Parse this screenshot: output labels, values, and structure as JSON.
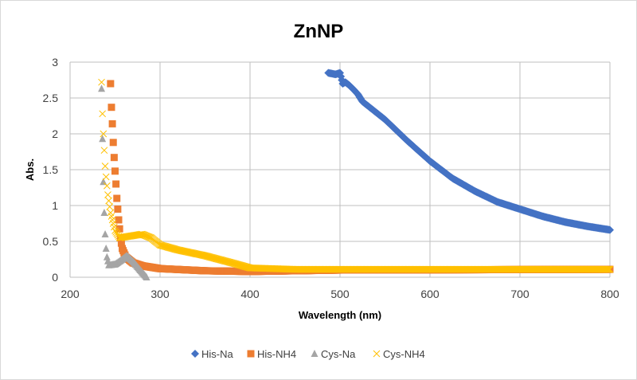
{
  "chart_data": {
    "type": "scatter",
    "title": "ZnNP",
    "xlabel": "Wavelength (nm)",
    "ylabel": "Abs.",
    "xlim": [
      200,
      800
    ],
    "ylim": [
      0,
      3
    ],
    "xticks": [
      "200",
      "300",
      "400",
      "500",
      "600",
      "700",
      "800"
    ],
    "yticks": [
      "0",
      "0.5",
      "1",
      "1.5",
      "2",
      "2.5",
      "3"
    ],
    "grid": true,
    "legend": "bottom",
    "series": [
      {
        "name": "His-Na",
        "marker": "diamond",
        "color": "#4472C4",
        "x": [
          487,
          495,
          500,
          503,
          506,
          510,
          515,
          520,
          525,
          535,
          550,
          575,
          600,
          625,
          650,
          675,
          700,
          725,
          750,
          775,
          800
        ],
        "y": [
          2.85,
          2.83,
          2.85,
          2.7,
          2.72,
          2.68,
          2.62,
          2.55,
          2.45,
          2.35,
          2.2,
          1.9,
          1.62,
          1.38,
          1.2,
          1.05,
          0.95,
          0.85,
          0.77,
          0.71,
          0.66
        ]
      },
      {
        "name": "His-NH4",
        "marker": "square",
        "color": "#ED7D31",
        "x": [
          245,
          246,
          247,
          248,
          249,
          250,
          251,
          252,
          254,
          256,
          258,
          262,
          270,
          280,
          300,
          350,
          400,
          450,
          500,
          800
        ],
        "y": [
          2.7,
          2.37,
          2.14,
          1.88,
          1.67,
          1.48,
          1.3,
          1.1,
          0.8,
          0.55,
          0.4,
          0.28,
          0.2,
          0.16,
          0.12,
          0.09,
          0.08,
          0.09,
          0.1,
          0.11
        ]
      },
      {
        "name": "Cys-Na",
        "marker": "triangle",
        "color": "#A5A5A5",
        "x": [
          235,
          236,
          237,
          238,
          239,
          240,
          241,
          243,
          250,
          258,
          263,
          270,
          278,
          285
        ],
        "y": [
          2.63,
          1.93,
          1.33,
          0.9,
          0.6,
          0.4,
          0.28,
          0.17,
          0.18,
          0.25,
          0.3,
          0.22,
          0.1,
          0.0
        ]
      },
      {
        "name": "Cys-NH4",
        "marker": "x",
        "color": "#FFC000",
        "x": [
          235,
          236,
          237,
          238,
          239,
          240,
          242,
          245,
          250,
          255,
          265,
          280,
          290,
          300,
          320,
          350,
          380,
          400,
          450,
          600,
          800
        ],
        "y": [
          2.72,
          2.28,
          2.0,
          1.77,
          1.55,
          1.4,
          1.15,
          0.9,
          0.65,
          0.55,
          0.57,
          0.6,
          0.55,
          0.45,
          0.38,
          0.3,
          0.2,
          0.13,
          0.11,
          0.11,
          0.11
        ]
      }
    ]
  }
}
